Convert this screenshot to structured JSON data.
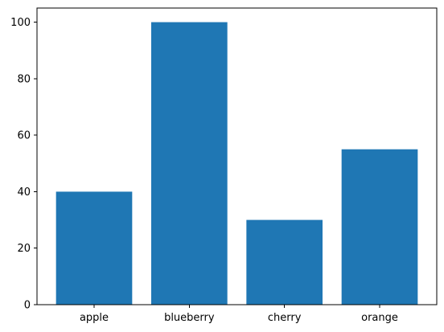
{
  "chart_data": {
    "type": "bar",
    "title": "",
    "xlabel": "",
    "ylabel": "",
    "categories": [
      "apple",
      "blueberry",
      "cherry",
      "orange"
    ],
    "values": [
      40,
      100,
      30,
      55
    ],
    "ylim": [
      0,
      105
    ],
    "yticks": [
      0,
      20,
      40,
      60,
      80,
      100
    ],
    "bar_color": "#1f77b4",
    "grid": false,
    "legend": "none"
  }
}
